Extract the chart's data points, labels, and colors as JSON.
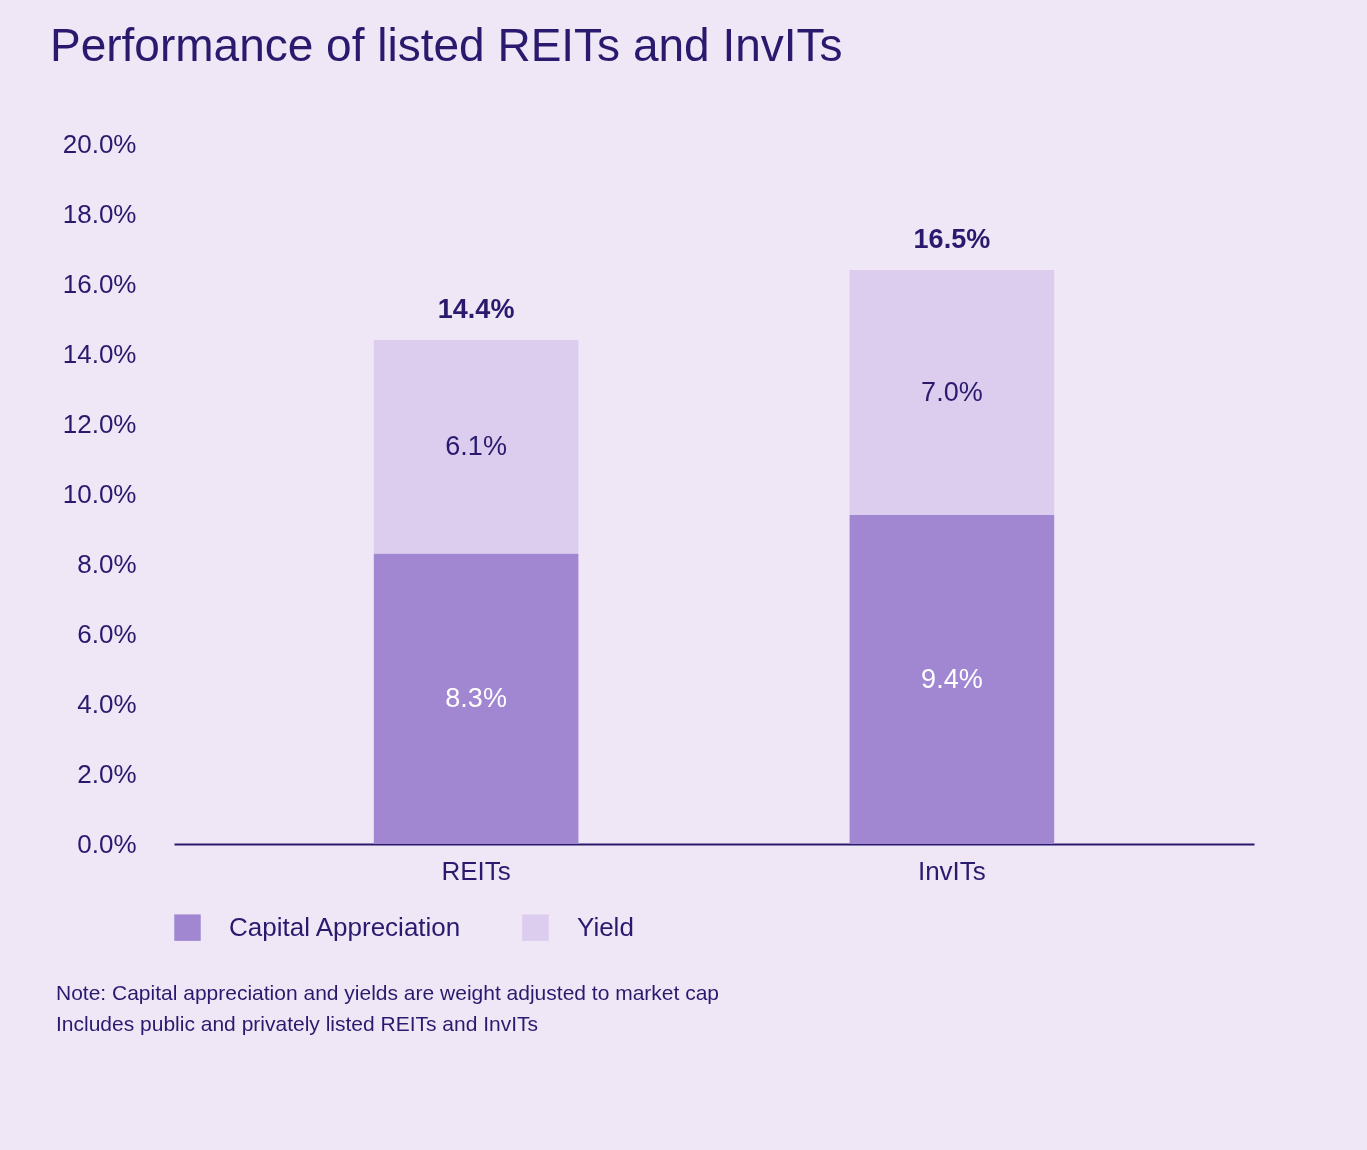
{
  "chart_data": {
    "type": "bar",
    "title": "Performance of listed REITs and InvITs",
    "categories": [
      "REITs",
      "InvITs"
    ],
    "stacked": true,
    "series": [
      {
        "name": "Capital Appreciation",
        "color": "#a186d1",
        "values": [
          8.3,
          9.4
        ],
        "value_labels": [
          "8.3%",
          "9.4%"
        ]
      },
      {
        "name": "Yield",
        "color": "#dccdee",
        "values": [
          6.1,
          7.0
        ],
        "value_labels": [
          "6.1%",
          "7.0%"
        ]
      }
    ],
    "totals": [
      "14.4%",
      "16.5%"
    ],
    "ylim": [
      0,
      20
    ],
    "yticks": [
      {
        "value": 0,
        "label": "0.0%"
      },
      {
        "value": 2,
        "label": "2.0%"
      },
      {
        "value": 4,
        "label": "4.0%"
      },
      {
        "value": 6,
        "label": "6.0%"
      },
      {
        "value": 8,
        "label": "8.0%"
      },
      {
        "value": 10,
        "label": "10.0%"
      },
      {
        "value": 12,
        "label": "12.0%"
      },
      {
        "value": 14,
        "label": "14.0%"
      },
      {
        "value": 16,
        "label": "16.0%"
      },
      {
        "value": 18,
        "label": "18.0%"
      },
      {
        "value": 20,
        "label": "20.0%"
      }
    ],
    "grid": false,
    "legend": "bottom",
    "annotations": [
      "Note: Capital appreciation and yields are weight adjusted to market cap",
      "Includes public and privately listed REITs and InvITs"
    ]
  }
}
